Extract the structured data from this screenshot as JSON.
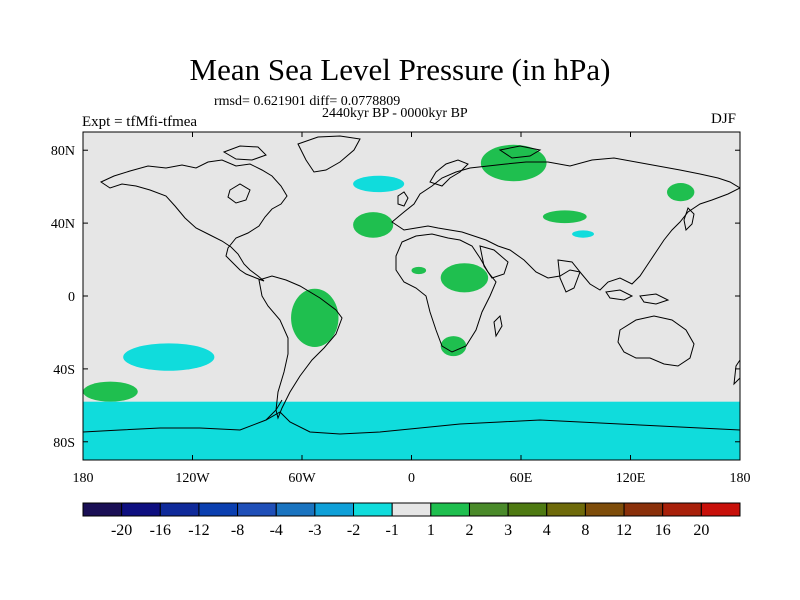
{
  "title": "Mean Sea Level Pressure (in hPa)",
  "stats_text": "rmsd= 0.621901 diff= 0.0778809",
  "period_text": "2440kyr BP - 0000kyr BP",
  "experiment_text": "Expt = tfMfi-tfmea",
  "season_text": "DJF",
  "map": {
    "projection": "cylindrical equidistant",
    "lon_range": [
      -180,
      180
    ],
    "lat_range": [
      -90,
      90
    ],
    "background_color": "#e6e6e6",
    "x_ticks": [
      {
        "lon": -180,
        "label": "180"
      },
      {
        "lon": -120,
        "label": "120W"
      },
      {
        "lon": -60,
        "label": "60W"
      },
      {
        "lon": 0,
        "label": "0"
      },
      {
        "lon": 60,
        "label": "60E"
      },
      {
        "lon": 120,
        "label": "120E"
      },
      {
        "lon": 180,
        "label": "180"
      }
    ],
    "y_ticks": [
      {
        "lat": 80,
        "label": "80N"
      },
      {
        "lat": 40,
        "label": "40N"
      },
      {
        "lat": 0,
        "label": "0"
      },
      {
        "lat": -40,
        "label": "40S"
      },
      {
        "lat": -80,
        "label": "80S"
      }
    ],
    "anomaly_regions": [
      {
        "name": "scandinavia-russia-positive",
        "category": "1 to 2",
        "color": "#1fbf4f",
        "lon": [
          38,
          74
        ],
        "lat": [
          63,
          83
        ]
      },
      {
        "name": "east-siberia-positive",
        "category": "1 to 2",
        "color": "#1fbf4f",
        "lon": [
          140,
          155
        ],
        "lat": [
          52,
          62
        ]
      },
      {
        "name": "central-asia-positive",
        "category": "1 to 2",
        "color": "#1fbf4f",
        "lon": [
          72,
          96
        ],
        "lat": [
          40,
          47
        ]
      },
      {
        "name": "north-atlantic-azores-positive",
        "category": "1 to 2",
        "color": "#1fbf4f",
        "lon": [
          -32,
          -10
        ],
        "lat": [
          32,
          46
        ]
      },
      {
        "name": "south-america-positive",
        "category": "1 to 2",
        "color": "#1fbf4f",
        "lon": [
          -66,
          -40
        ],
        "lat": [
          -28,
          4
        ]
      },
      {
        "name": "sahel-positive",
        "category": "1 to 2",
        "color": "#1fbf4f",
        "lon": [
          0,
          8
        ],
        "lat": [
          12,
          16
        ]
      },
      {
        "name": "central-africa-positive",
        "category": "1 to 2",
        "color": "#1fbf4f",
        "lon": [
          16,
          42
        ],
        "lat": [
          2,
          18
        ]
      },
      {
        "name": "southern-africa-positive",
        "category": "1 to 2",
        "color": "#1fbf4f",
        "lon": [
          16,
          30
        ],
        "lat": [
          -33,
          -22
        ]
      },
      {
        "name": "south-pacific-positive",
        "category": "1 to 2",
        "color": "#1fbf4f",
        "lon": [
          -180,
          -150
        ],
        "lat": [
          -58,
          -47
        ]
      },
      {
        "name": "iceland-negative",
        "category": "-1 to -2",
        "color": "#10dcdc",
        "lon": [
          -32,
          -4
        ],
        "lat": [
          57,
          66
        ]
      },
      {
        "name": "asia-small-negative",
        "category": "-1 to -2",
        "color": "#10dcdc",
        "lon": [
          88,
          100
        ],
        "lat": [
          32,
          36
        ]
      },
      {
        "name": "southeast-pacific-negative",
        "category": "-1 to -2",
        "color": "#10dcdc",
        "lon": [
          -158,
          -108
        ],
        "lat": [
          -41,
          -26
        ]
      },
      {
        "name": "southern-ocean-negative-band",
        "category": "-1 to -2",
        "color": "#10dcdc",
        "lon": [
          -180,
          180
        ],
        "lat": [
          -90,
          -58
        ]
      }
    ]
  },
  "colorbar": {
    "labels": [
      "-20",
      "-16",
      "-12",
      "-8",
      "-4",
      "-3",
      "-2",
      "-1",
      "1",
      "2",
      "3",
      "4",
      "8",
      "12",
      "16",
      "20"
    ],
    "colors": [
      "#1a0f55",
      "#0e0f80",
      "#0f2a9a",
      "#0b3fb0",
      "#1f4fb8",
      "#1a74c0",
      "#0fa0d8",
      "#10dcdc",
      "#e6e6e6",
      "#1fbf4f",
      "#4a8a2a",
      "#4e7a12",
      "#6e6a0a",
      "#7e4d0a",
      "#8a300a",
      "#a8200a",
      "#c8100a"
    ]
  }
}
